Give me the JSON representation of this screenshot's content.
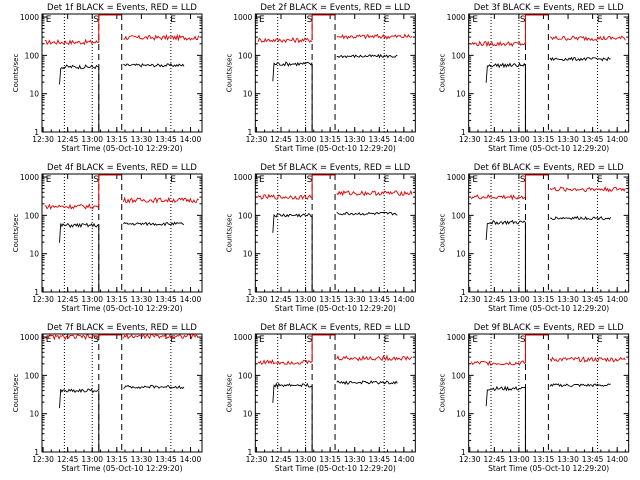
{
  "colors": {
    "events": "#000000",
    "lld": "#e00000",
    "axis": "#000000",
    "background": "#ffffff"
  },
  "common": {
    "ylabel": "Counts/sec",
    "xlabel": "Start Time (05-Oct-10 12:29:20)",
    "time_ticks": [
      "12:30",
      "12:45",
      "13:00",
      "13:15",
      "13:30",
      "13:45",
      "14:00"
    ],
    "y_ticks": [
      "1",
      "10",
      "100",
      "1000"
    ],
    "markers": [
      "E",
      "S",
      "E"
    ]
  },
  "chart_data": [
    {
      "type": "line",
      "title": "Det 1f BLACK = Events, RED = LLD",
      "xlim": [
        "12:29:20",
        "14:07:00"
      ],
      "ylim": [
        1,
        1200
      ],
      "y_scale": "log",
      "series": [
        {
          "values_red": [
            {
              "seg": [
                "12:31",
                "13:04"
              ],
              "level": 220
            },
            {
              "seg": [
                "13:04",
                "13:18"
              ],
              "level": 1200
            },
            {
              "seg": [
                "13:19",
                "14:05"
              ],
              "level": 290
            }
          ]
        },
        {
          "values_black": [
            {
              "seg": [
                "12:40",
                "13:04"
              ],
              "level": 50
            },
            {
              "seg": [
                "13:19",
                "13:56"
              ],
              "level": 55
            }
          ]
        }
      ]
    },
    {
      "type": "line",
      "title": "Det 2f BLACK = Events, RED = LLD",
      "xlim": [
        "12:29:20",
        "14:07:00"
      ],
      "ylim": [
        1,
        1200
      ],
      "y_scale": "log",
      "series": [
        {
          "values_red": [
            {
              "seg": [
                "12:31",
                "13:04"
              ],
              "level": 250
            },
            {
              "seg": [
                "13:04",
                "13:18"
              ],
              "level": 1200
            },
            {
              "seg": [
                "13:19",
                "14:05"
              ],
              "level": 310
            }
          ]
        },
        {
          "values_black": [
            {
              "seg": [
                "12:40",
                "13:04"
              ],
              "level": 60
            },
            {
              "seg": [
                "13:19",
                "13:56"
              ],
              "level": 95
            }
          ]
        }
      ]
    },
    {
      "type": "line",
      "title": "Det 3f BLACK = Events, RED = LLD",
      "xlim": [
        "12:29:20",
        "14:07:00"
      ],
      "ylim": [
        1,
        1200
      ],
      "y_scale": "log",
      "series": [
        {
          "values_red": [
            {
              "seg": [
                "12:31",
                "13:04"
              ],
              "level": 200
            },
            {
              "seg": [
                "13:04",
                "13:18"
              ],
              "level": 1200
            },
            {
              "seg": [
                "13:19",
                "14:05"
              ],
              "level": 280
            }
          ]
        },
        {
          "values_black": [
            {
              "seg": [
                "12:40",
                "13:04"
              ],
              "level": 55
            },
            {
              "seg": [
                "13:19",
                "13:56"
              ],
              "level": 80
            }
          ]
        }
      ]
    },
    {
      "type": "line",
      "title": "Det 4f BLACK = Events, RED = LLD",
      "xlim": [
        "12:29:20",
        "14:07:00"
      ],
      "ylim": [
        1,
        1200
      ],
      "y_scale": "log",
      "series": [
        {
          "values_red": [
            {
              "seg": [
                "12:31",
                "13:04"
              ],
              "level": 170
            },
            {
              "seg": [
                "13:04",
                "13:18"
              ],
              "level": 1200
            },
            {
              "seg": [
                "13:19",
                "14:05"
              ],
              "level": 250
            }
          ]
        },
        {
          "values_black": [
            {
              "seg": [
                "12:40",
                "13:04"
              ],
              "level": 55
            },
            {
              "seg": [
                "13:19",
                "13:56"
              ],
              "level": 60
            }
          ]
        }
      ]
    },
    {
      "type": "line",
      "title": "Det 5f BLACK = Events, RED = LLD",
      "xlim": [
        "12:29:20",
        "14:07:00"
      ],
      "ylim": [
        1,
        1200
      ],
      "y_scale": "log",
      "series": [
        {
          "values_red": [
            {
              "seg": [
                "12:31",
                "13:04"
              ],
              "level": 300
            },
            {
              "seg": [
                "13:04",
                "13:18"
              ],
              "level": 1200
            },
            {
              "seg": [
                "13:19",
                "14:05"
              ],
              "level": 380
            }
          ]
        },
        {
          "values_black": [
            {
              "seg": [
                "12:40",
                "13:04"
              ],
              "level": 100
            },
            {
              "seg": [
                "13:19",
                "13:56"
              ],
              "level": 110
            }
          ]
        }
      ]
    },
    {
      "type": "line",
      "title": "Det 6f BLACK = Events, RED = LLD",
      "xlim": [
        "12:29:20",
        "14:07:00"
      ],
      "ylim": [
        1,
        1200
      ],
      "y_scale": "log",
      "series": [
        {
          "values_red": [
            {
              "seg": [
                "12:31",
                "13:04"
              ],
              "level": 300
            },
            {
              "seg": [
                "13:04",
                "13:18"
              ],
              "level": 1200
            },
            {
              "seg": [
                "13:19",
                "14:05"
              ],
              "level": 480
            }
          ]
        },
        {
          "values_black": [
            {
              "seg": [
                "12:40",
                "13:04"
              ],
              "level": 65
            },
            {
              "seg": [
                "13:19",
                "13:56"
              ],
              "level": 85
            }
          ]
        }
      ]
    },
    {
      "type": "line",
      "title": "Det 7f BLACK = Events, RED = LLD",
      "xlim": [
        "12:29:20",
        "14:07:00"
      ],
      "ylim": [
        1,
        1200
      ],
      "y_scale": "log",
      "series": [
        {
          "values_red": [
            {
              "seg": [
                "12:31",
                "13:04"
              ],
              "level": 1000
            },
            {
              "seg": [
                "13:04",
                "13:18"
              ],
              "level": 1200
            },
            {
              "seg": [
                "13:19",
                "14:05"
              ],
              "level": 1050
            }
          ]
        },
        {
          "values_black": [
            {
              "seg": [
                "12:40",
                "13:04"
              ],
              "level": 40
            },
            {
              "seg": [
                "13:19",
                "13:56"
              ],
              "level": 50
            }
          ]
        }
      ]
    },
    {
      "type": "line",
      "title": "Det 8f BLACK = Events, RED = LLD",
      "xlim": [
        "12:29:20",
        "14:07:00"
      ],
      "ylim": [
        1,
        1200
      ],
      "y_scale": "log",
      "series": [
        {
          "values_red": [
            {
              "seg": [
                "12:31",
                "13:04"
              ],
              "level": 220
            },
            {
              "seg": [
                "13:04",
                "13:18"
              ],
              "level": 1200
            },
            {
              "seg": [
                "13:19",
                "14:05"
              ],
              "level": 280
            }
          ]
        },
        {
          "values_black": [
            {
              "seg": [
                "12:40",
                "13:04"
              ],
              "level": 55
            },
            {
              "seg": [
                "13:19",
                "13:56"
              ],
              "level": 65
            }
          ]
        }
      ]
    },
    {
      "type": "line",
      "title": "Det 9f BLACK = Events, RED = LLD",
      "xlim": [
        "12:29:20",
        "14:07:00"
      ],
      "ylim": [
        1,
        1200
      ],
      "y_scale": "log",
      "series": [
        {
          "values_red": [
            {
              "seg": [
                "12:31",
                "13:04"
              ],
              "level": 210
            },
            {
              "seg": [
                "13:04",
                "13:18"
              ],
              "level": 1200
            },
            {
              "seg": [
                "13:19",
                "14:05"
              ],
              "level": 260
            }
          ]
        },
        {
          "values_black": [
            {
              "seg": [
                "12:40",
                "13:04"
              ],
              "level": 45
            },
            {
              "seg": [
                "13:19",
                "13:56"
              ],
              "level": 55
            }
          ]
        }
      ]
    }
  ]
}
